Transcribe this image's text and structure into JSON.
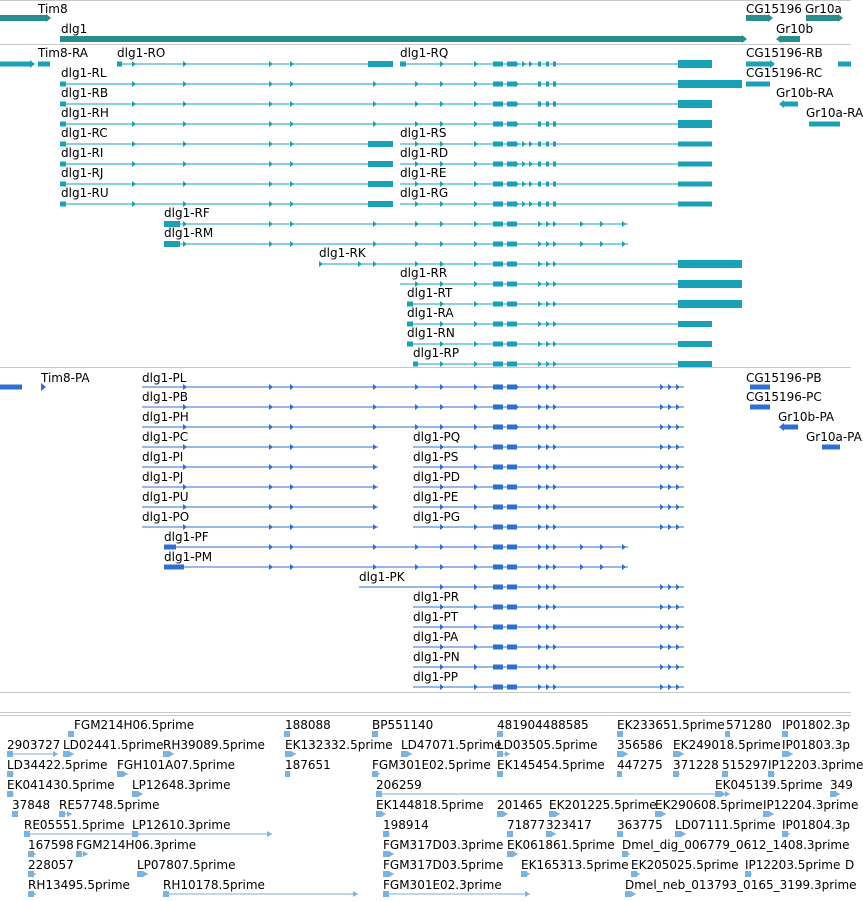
{
  "colors": {
    "gene": "#2b8c8c",
    "transcript": "#1aa1b8",
    "protein": "#2f6fd0",
    "est": "#7bb2de",
    "divider": "#c8c8c8"
  },
  "tracks": {
    "genes": {
      "labels": [
        "Tim8",
        "dlg1",
        "CG15196",
        "Gr10a",
        "Gr10b"
      ],
      "features": [
        {
          "name": "Tim8",
          "strand": "+"
        },
        {
          "name": "dlg1",
          "strand": "+"
        },
        {
          "name": "CG15196",
          "strand": "+"
        },
        {
          "name": "Gr10a",
          "strand": "+"
        },
        {
          "name": "Gr10b",
          "strand": "-"
        }
      ]
    },
    "transcripts": {
      "labels": [
        "Tim8-RA",
        "dlg1-RO",
        "dlg1-RQ",
        "CG15196-RB",
        "dlg1-RL",
        "CG15196-RC",
        "dlg1-RB",
        "Gr10b-RA",
        "dlg1-RH",
        "Gr10a-RA",
        "dlg1-RC",
        "dlg1-RS",
        "dlg1-RI",
        "dlg1-RD",
        "dlg1-RJ",
        "dlg1-RE",
        "dlg1-RU",
        "dlg1-RG",
        "dlg1-RF",
        "dlg1-RM",
        "dlg1-RK",
        "dlg1-RR",
        "dlg1-RT",
        "dlg1-RA",
        "dlg1-RN",
        "dlg1-RP"
      ],
      "features": [
        {
          "name": "Tim8-RA"
        },
        {
          "name": "dlg1-RO"
        },
        {
          "name": "dlg1-RQ"
        },
        {
          "name": "CG15196-RB"
        },
        {
          "name": "dlg1-RL"
        },
        {
          "name": "CG15196-RC"
        },
        {
          "name": "dlg1-RB"
        },
        {
          "name": "Gr10b-RA"
        },
        {
          "name": "dlg1-RH"
        },
        {
          "name": "Gr10a-RA"
        },
        {
          "name": "dlg1-RC"
        },
        {
          "name": "dlg1-RS"
        },
        {
          "name": "dlg1-RI"
        },
        {
          "name": "dlg1-RD"
        },
        {
          "name": "dlg1-RJ"
        },
        {
          "name": "dlg1-RE"
        },
        {
          "name": "dlg1-RU"
        },
        {
          "name": "dlg1-RG"
        },
        {
          "name": "dlg1-RF"
        },
        {
          "name": "dlg1-RM"
        },
        {
          "name": "dlg1-RK"
        },
        {
          "name": "dlg1-RR"
        },
        {
          "name": "dlg1-RT"
        },
        {
          "name": "dlg1-RA"
        },
        {
          "name": "dlg1-RN"
        },
        {
          "name": "dlg1-RP"
        }
      ]
    },
    "proteins": {
      "labels": [
        "Tim8-PA",
        "dlg1-PL",
        "CG15196-PB",
        "dlg1-PB",
        "CG15196-PC",
        "dlg1-PH",
        "Gr10b-PA",
        "dlg1-PC",
        "dlg1-PQ",
        "Gr10a-PA",
        "dlg1-PI",
        "dlg1-PS",
        "dlg1-PJ",
        "dlg1-PD",
        "dlg1-PU",
        "dlg1-PE",
        "dlg1-PO",
        "dlg1-PG",
        "dlg1-PF",
        "dlg1-PM",
        "dlg1-PK",
        "dlg1-PR",
        "dlg1-PT",
        "dlg1-PA",
        "dlg1-PN",
        "dlg1-PP"
      ],
      "features": [
        {
          "name": "Tim8-PA"
        },
        {
          "name": "dlg1-PL"
        },
        {
          "name": "CG15196-PB"
        },
        {
          "name": "dlg1-PB"
        },
        {
          "name": "CG15196-PC"
        },
        {
          "name": "dlg1-PH"
        },
        {
          "name": "Gr10b-PA"
        },
        {
          "name": "dlg1-PC"
        },
        {
          "name": "dlg1-PQ"
        },
        {
          "name": "Gr10a-PA"
        },
        {
          "name": "dlg1-PI"
        },
        {
          "name": "dlg1-PS"
        },
        {
          "name": "dlg1-PJ"
        },
        {
          "name": "dlg1-PD"
        },
        {
          "name": "dlg1-PU"
        },
        {
          "name": "dlg1-PE"
        },
        {
          "name": "dlg1-PO"
        },
        {
          "name": "dlg1-PG"
        },
        {
          "name": "dlg1-PF"
        },
        {
          "name": "dlg1-PM"
        },
        {
          "name": "dlg1-PK"
        },
        {
          "name": "dlg1-PR"
        },
        {
          "name": "dlg1-PT"
        },
        {
          "name": "dlg1-PA"
        },
        {
          "name": "dlg1-PN"
        },
        {
          "name": "dlg1-PP"
        }
      ]
    },
    "ests": {
      "labels": [
        "FGM214H06.5prime",
        "188088",
        "BP551140",
        "481904488585",
        "EK233651.5prime",
        "571280",
        "IP01802.3p",
        "2903727",
        "LD02441.5prime",
        "RH39089.5prime",
        "EK132332.5prime",
        "LD47071.5prime",
        "LD03505.5prime",
        "356586",
        "EK249018.5prime",
        "IP01803.3p",
        "LD34422.5prime",
        "FGH101A07.5prime",
        "187651",
        "FGM301E02.5prime",
        "EK145454.5prime",
        "447275",
        "371228",
        "515297",
        "IP12203.3prime",
        "EK041430.5prime",
        "LP12648.3prime",
        "206259",
        "EK045139.5prime",
        "349",
        "37848",
        "RE57748.5prime",
        "EK144818.5prime",
        "201465",
        "EK201225.5prime",
        "EK290608.5prime",
        "IP12204.3prime",
        "RE05551.5prime",
        "LP12610.3prime",
        "198914",
        "71877",
        "323417",
        "363775",
        "LD07111.5prime",
        "IP01804.3p",
        "167598",
        "FGM214H06.3prime",
        "FGM317D03.3prime",
        "EK061861.5prime",
        "Dmel_dig_006779_0612_1408.3prime",
        "228057",
        "LP07807.5prime",
        "FGM317D03.5prime",
        "EK165313.5prime",
        "EK205025.5prime",
        "IP12203.5prime",
        "D",
        "RH13495.5prime",
        "RH10178.5prime",
        "FGM301E02.3prime",
        "Dmel_neb_013793_0165_3199.3prime"
      ]
    }
  }
}
